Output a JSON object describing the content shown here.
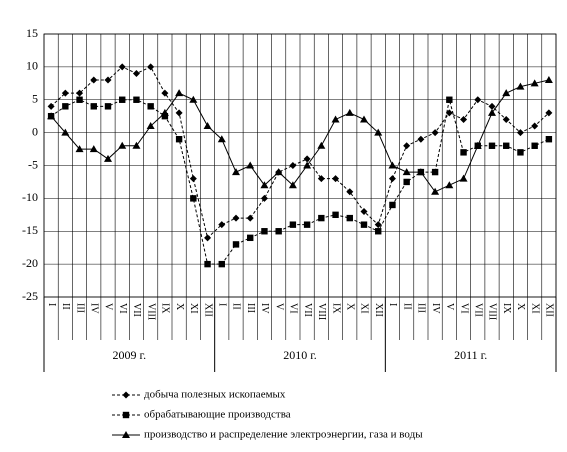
{
  "chart_data": {
    "type": "line",
    "categories": [
      "I",
      "II",
      "III",
      "IV",
      "V",
      "VI",
      "VII",
      "VIII",
      "IX",
      "X",
      "XI",
      "XII",
      "I",
      "II",
      "III",
      "IV",
      "V",
      "VI",
      "VII",
      "VIII",
      "IX",
      "X",
      "XI",
      "XII",
      "I",
      "II",
      "III",
      "IV",
      "V",
      "VI",
      "VII",
      "VIII",
      "IX",
      "X",
      "XI",
      "XII"
    ],
    "year_groups": [
      "2009 г.",
      "2010 г.",
      "2011 г."
    ],
    "series": [
      {
        "name": "добыча полезных ископаемых",
        "color": "#000000",
        "marker": "diamond",
        "dash": "dashed",
        "values": [
          4,
          6,
          6,
          8,
          8,
          10,
          9,
          10,
          6,
          3,
          -7,
          -16,
          -14,
          -13,
          -13,
          -10,
          -6,
          -5,
          -4,
          -7,
          -7,
          -9,
          -12,
          -14,
          -7,
          -2,
          -1,
          0,
          3,
          2,
          5,
          4,
          2,
          0,
          1,
          3
        ]
      },
      {
        "name": "обрабатывающие производства",
        "color": "#000000",
        "marker": "square",
        "dash": "dashed",
        "values": [
          2.5,
          4,
          5,
          4,
          4,
          5,
          5,
          4,
          2.5,
          -1,
          -10,
          -20,
          -20,
          -17,
          -16,
          -15,
          -15,
          -14,
          -14,
          -13,
          -12.5,
          -13,
          -14,
          -15,
          -11,
          -7.5,
          -6,
          -6,
          5,
          -3,
          -2,
          -2,
          -2,
          -3,
          -2,
          -1
        ]
      },
      {
        "name": "производство и распределение электроэнергии, газа и воды",
        "color": "#000000",
        "marker": "triangle",
        "dash": "solid",
        "values": [
          2.5,
          0,
          -2.5,
          -2.5,
          -4,
          -2,
          -2,
          1,
          3,
          6,
          5,
          1,
          -1,
          -6,
          -5,
          -8,
          -6,
          -8,
          -5,
          -2,
          2,
          3,
          2,
          0,
          -5,
          -6,
          -6,
          -9,
          -8,
          -7,
          -2,
          3,
          6,
          7,
          7.5,
          8
        ]
      }
    ],
    "ylim": [
      -25,
      15
    ],
    "yticks": [
      -25,
      -20,
      -15,
      -10,
      -5,
      0,
      5,
      10,
      15
    ],
    "grid": true
  }
}
